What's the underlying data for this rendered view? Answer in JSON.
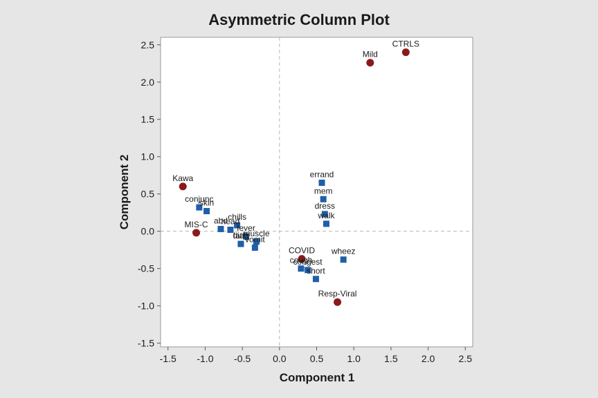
{
  "chart_data": {
    "type": "scatter",
    "title": "Asymmetric Column Plot",
    "xlabel": "Component 1",
    "ylabel": "Component 2",
    "xlim": [
      -1.6,
      2.6
    ],
    "ylim": [
      -1.55,
      2.6
    ],
    "x_ticks": [
      "-1.5",
      "-1.0",
      "-0.5",
      "0.0",
      "0.5",
      "1.0",
      "1.5",
      "2.0",
      "2.5"
    ],
    "y_ticks": [
      "2.5",
      "2.0",
      "1.5",
      "1.0",
      "0.5",
      "0.0",
      "-0.5",
      "-1.0",
      "-1.5"
    ],
    "reference_lines": {
      "x": 0,
      "y": 0,
      "style": "dashed"
    },
    "grid": false,
    "series": [
      {
        "marker": "circle",
        "color": "#8b1a1a",
        "points": [
          {
            "label": "CTRLS",
            "x": 1.7,
            "y": 2.4
          },
          {
            "label": "Mild",
            "x": 1.22,
            "y": 2.26
          },
          {
            "label": "Kawa",
            "x": -1.3,
            "y": 0.6
          },
          {
            "label": "MIS-C",
            "x": -1.12,
            "y": -0.02
          },
          {
            "label": "COVID",
            "x": 0.3,
            "y": -0.37
          },
          {
            "label": "Resp-Viral",
            "x": 0.78,
            "y": -0.95
          }
        ]
      },
      {
        "marker": "square",
        "color": "#1f5fa8",
        "points": [
          {
            "label": "errand",
            "x": 0.57,
            "y": 0.65
          },
          {
            "label": "mem",
            "x": 0.59,
            "y": 0.43
          },
          {
            "label": "dress",
            "x": 0.61,
            "y": 0.23
          },
          {
            "label": "walk",
            "x": 0.63,
            "y": 0.1
          },
          {
            "label": "conjunc",
            "x": -1.08,
            "y": 0.32
          },
          {
            "label": "skin",
            "x": -0.98,
            "y": 0.27
          },
          {
            "label": "chills",
            "x": -0.57,
            "y": 0.08
          },
          {
            "label": "head",
            "x": -0.66,
            "y": 0.02
          },
          {
            "label": "fever",
            "x": -0.45,
            "y": -0.07
          },
          {
            "label": "abd",
            "x": -0.79,
            "y": 0.03
          },
          {
            "label": "fatig",
            "x": -0.52,
            "y": -0.17
          },
          {
            "label": "muscle",
            "x": -0.31,
            "y": -0.14
          },
          {
            "label": "vomit",
            "x": -0.33,
            "y": -0.22
          },
          {
            "label": "diah",
            "x": -0.52,
            "y": -0.17
          },
          {
            "label": "wheez",
            "x": 0.86,
            "y": -0.38
          },
          {
            "label": "congest",
            "x": 0.38,
            "y": -0.52
          },
          {
            "label": "cough",
            "x": 0.29,
            "y": -0.5
          },
          {
            "label": "short",
            "x": 0.49,
            "y": -0.64
          }
        ]
      }
    ]
  }
}
